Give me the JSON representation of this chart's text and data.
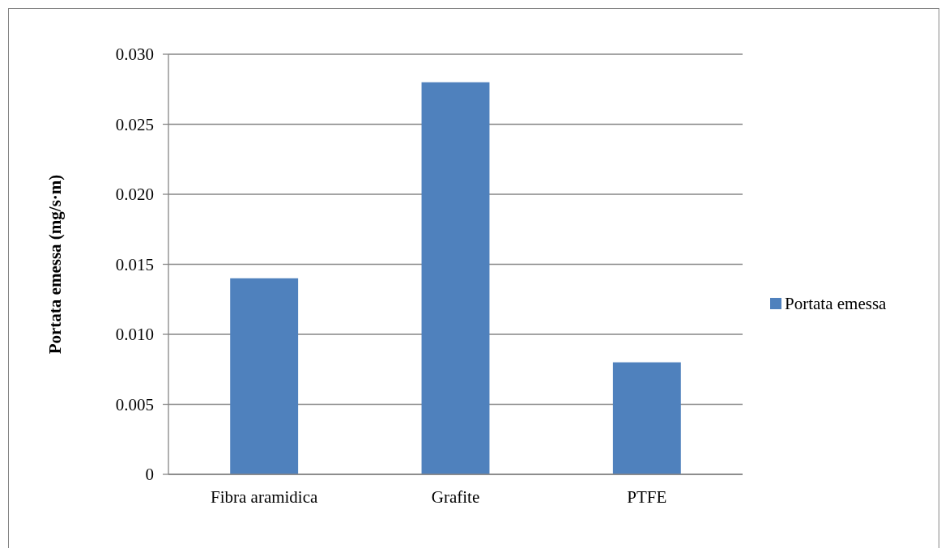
{
  "chart_data": {
    "type": "bar",
    "ylabel": "Portata emessa (mg/s·m)",
    "categories": [
      "Fibra aramidica",
      "Grafite",
      "PTFE"
    ],
    "series": [
      {
        "name": "Portata emessa",
        "color": "#4f81bd",
        "values": [
          0.014,
          0.028,
          0.008
        ]
      }
    ],
    "ylim": [
      0,
      0.03
    ],
    "yticks": [
      {
        "value": 0,
        "label": "0"
      },
      {
        "value": 0.005,
        "label": "0.005"
      },
      {
        "value": 0.01,
        "label": "0.010"
      },
      {
        "value": 0.015,
        "label": "0.015"
      },
      {
        "value": 0.02,
        "label": "0.020"
      },
      {
        "value": 0.025,
        "label": "0.025"
      },
      {
        "value": 0.03,
        "label": "0.030"
      }
    ],
    "grid": "y",
    "legend": "right"
  }
}
